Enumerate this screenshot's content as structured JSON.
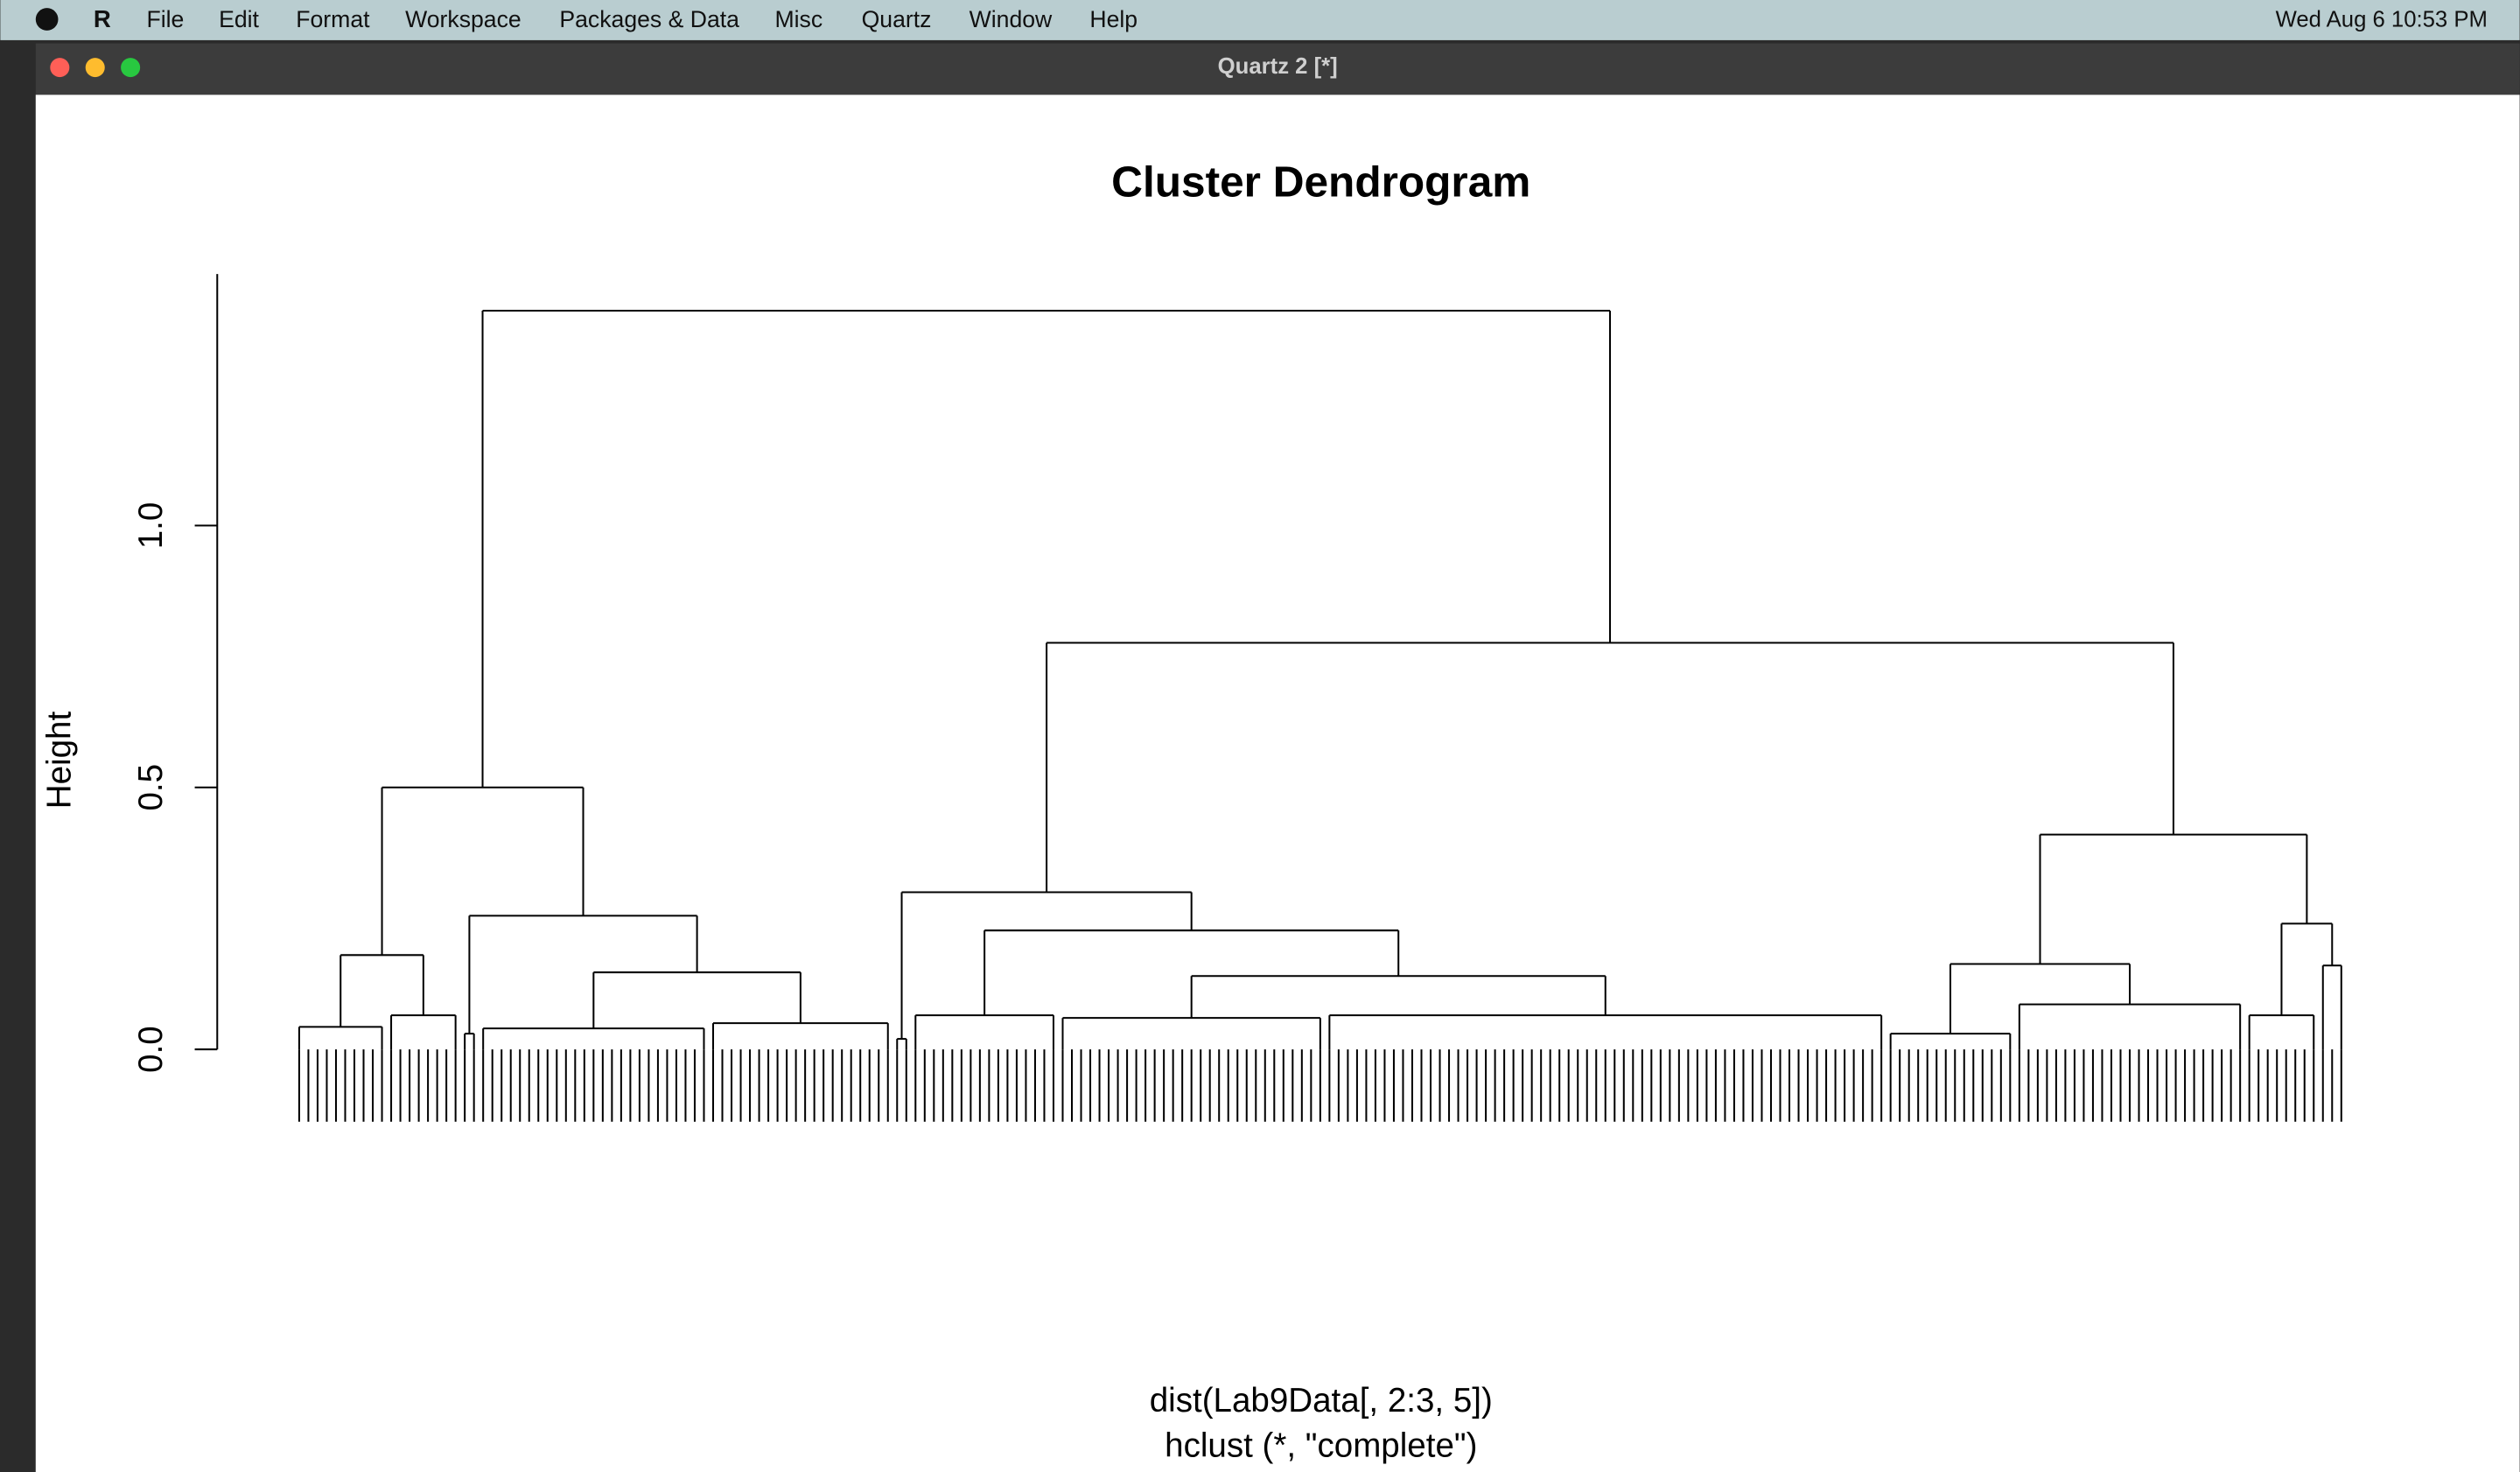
{
  "menubar": {
    "app": "R",
    "menus": [
      "File",
      "Edit",
      "Format",
      "Workspace",
      "Packages & Data",
      "Misc",
      "Quartz",
      "Window",
      "Help"
    ],
    "clock": "Wed Aug 6  10:53 PM"
  },
  "window": {
    "title": "Quartz 2 [*]"
  },
  "chart_data": {
    "type": "dendrogram",
    "title": "Cluster Dendrogram",
    "y_label": "Height",
    "x_label": [
      "dist(Lab9Data[, 2:3, 5])",
      "hclust (*, \"complete\")"
    ],
    "ylim": [
      0,
      1.48
    ],
    "yticks": [
      {
        "value": 0,
        "label": "0.0"
      },
      0.5,
      {
        "value": 1,
        "label": "1.0"
      }
    ],
    "tree": {
      "height": 1.41,
      "children": [
        {
          "height": 0.5,
          "children": [
            {
              "height": 0.18,
              "children": [
                {
                  "height": 0.043,
                  "leaves": 10
                },
                {
                  "height": 0.065,
                  "leaves": 8
                }
              ]
            },
            {
              "height": 0.255,
              "children": [
                {
                  "height": 0.03,
                  "leaves": 2
                },
                {
                  "height": 0.147,
                  "children": [
                    {
                      "height": 0.04,
                      "leaves": 25
                    },
                    {
                      "height": 0.05,
                      "leaves": 20
                    }
                  ]
                }
              ]
            }
          ]
        },
        {
          "height": 0.776,
          "children": [
            {
              "height": 0.3,
              "children": [
                {
                  "height": 0.02,
                  "leaves": 2
                },
                {
                  "height": 0.227,
                  "children": [
                    {
                      "height": 0.065,
                      "leaves": 16
                    },
                    {
                      "height": 0.14,
                      "children": [
                        {
                          "height": 0.06,
                          "leaves": 29
                        },
                        {
                          "height": 0.065,
                          "leaves": 61
                        }
                      ]
                    }
                  ]
                }
              ]
            },
            {
              "height": 0.41,
              "children": [
                {
                  "height": 0.163,
                  "children": [
                    {
                      "height": 0.03,
                      "leaves": 14
                    },
                    {
                      "height": 0.086,
                      "leaves": 25
                    }
                  ]
                },
                {
                  "height": 0.24,
                  "children": [
                    {
                      "height": 0.065,
                      "leaves": 8
                    },
                    {
                      "height": 0.16,
                      "leaves": 3
                    }
                  ]
                }
              ]
            }
          ]
        }
      ]
    }
  }
}
